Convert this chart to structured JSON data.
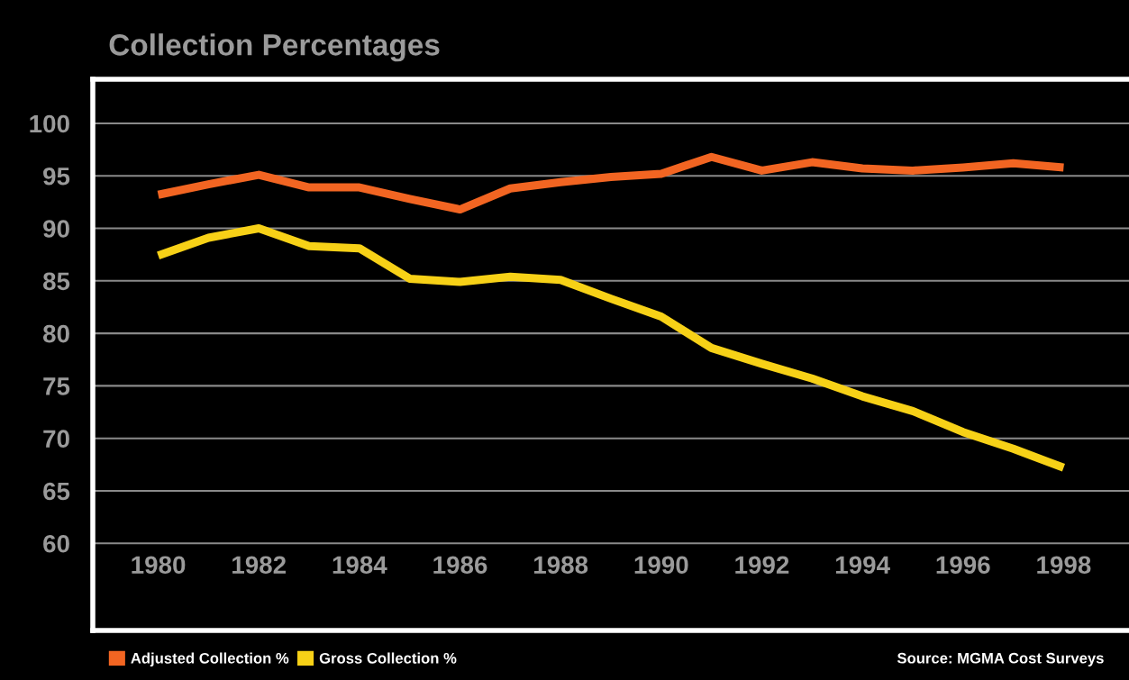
{
  "chart_data": {
    "type": "line",
    "title": "Collection Percentages",
    "x": [
      1980,
      1981,
      1982,
      1983,
      1984,
      1985,
      1986,
      1987,
      1988,
      1989,
      1990,
      1991,
      1992,
      1993,
      1994,
      1995,
      1996,
      1997,
      1998
    ],
    "series": [
      {
        "name": "Adjusted Collection %",
        "color": "#f26522",
        "values": [
          93.2,
          94.2,
          95.1,
          93.9,
          93.9,
          92.8,
          91.8,
          93.8,
          94.4,
          94.9,
          95.2,
          96.8,
          95.5,
          96.3,
          95.7,
          95.5,
          95.8,
          96.2,
          95.8
        ]
      },
      {
        "name": "Gross Collection %",
        "color": "#f7d117",
        "values": [
          87.4,
          89.1,
          90.0,
          88.3,
          88.1,
          85.2,
          84.9,
          85.4,
          85.1,
          83.3,
          81.6,
          78.6,
          77.1,
          75.7,
          74.0,
          72.6,
          70.6,
          69.0,
          67.2
        ]
      }
    ],
    "xlim": [
      1978.7,
      1999.3
    ],
    "xticks": [
      1980,
      1982,
      1984,
      1986,
      1988,
      1990,
      1992,
      1994,
      1996,
      1998
    ],
    "ylim": [
      51.7,
      104.2
    ],
    "yticks": [
      60,
      65,
      70,
      75,
      80,
      85,
      90,
      95,
      100
    ],
    "grid": "y",
    "legend": "bottom left",
    "marker": "none",
    "line_style": "solid",
    "annotations": [
      "Source: MGMA Cost Surveys"
    ]
  }
}
